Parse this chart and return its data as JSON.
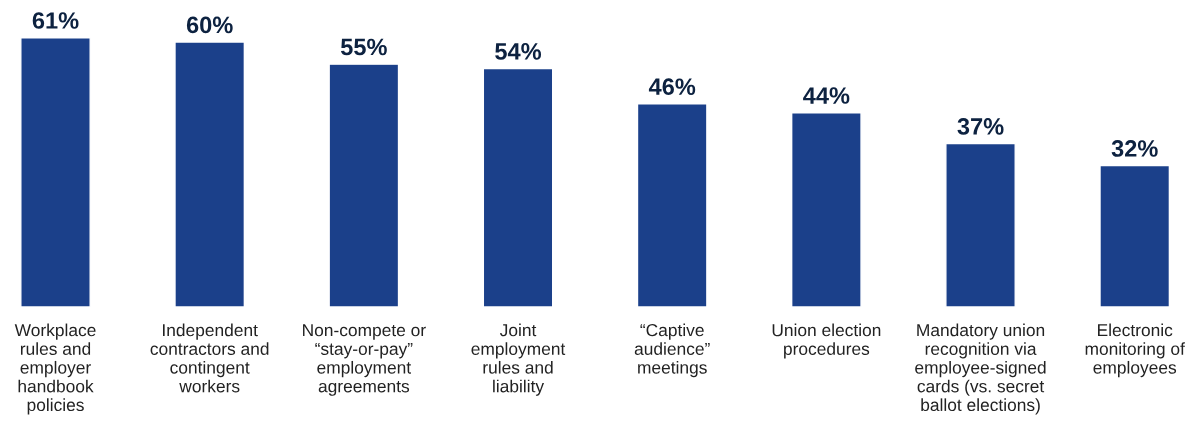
{
  "chart_data": {
    "type": "bar",
    "categories": [
      "Workplace\nrules and\nemployer\nhandbook\npolicies",
      "Independent\ncontractors and\ncontingent\nworkers",
      "Non-compete or\n“stay-or-pay”\nemployment\nagreements",
      "Joint\nemployment\nrules and\nliability",
      "“Captive\naudience”\nmeetings",
      "Union election\nprocedures",
      "Mandatory union\nrecognition via\nemployee-signed\ncards (vs. secret\nballot elections)",
      "Electronic\nmonitoring of\nemployees"
    ],
    "values": [
      61,
      60,
      55,
      54,
      46,
      44,
      37,
      32
    ],
    "color": "#1b408a",
    "value_labels": [
      "61%",
      "60%",
      "55%",
      "54%",
      "46%",
      "44%",
      "37%",
      "32%"
    ],
    "grid": false,
    "legend": false,
    "tick_labels": "x"
  }
}
